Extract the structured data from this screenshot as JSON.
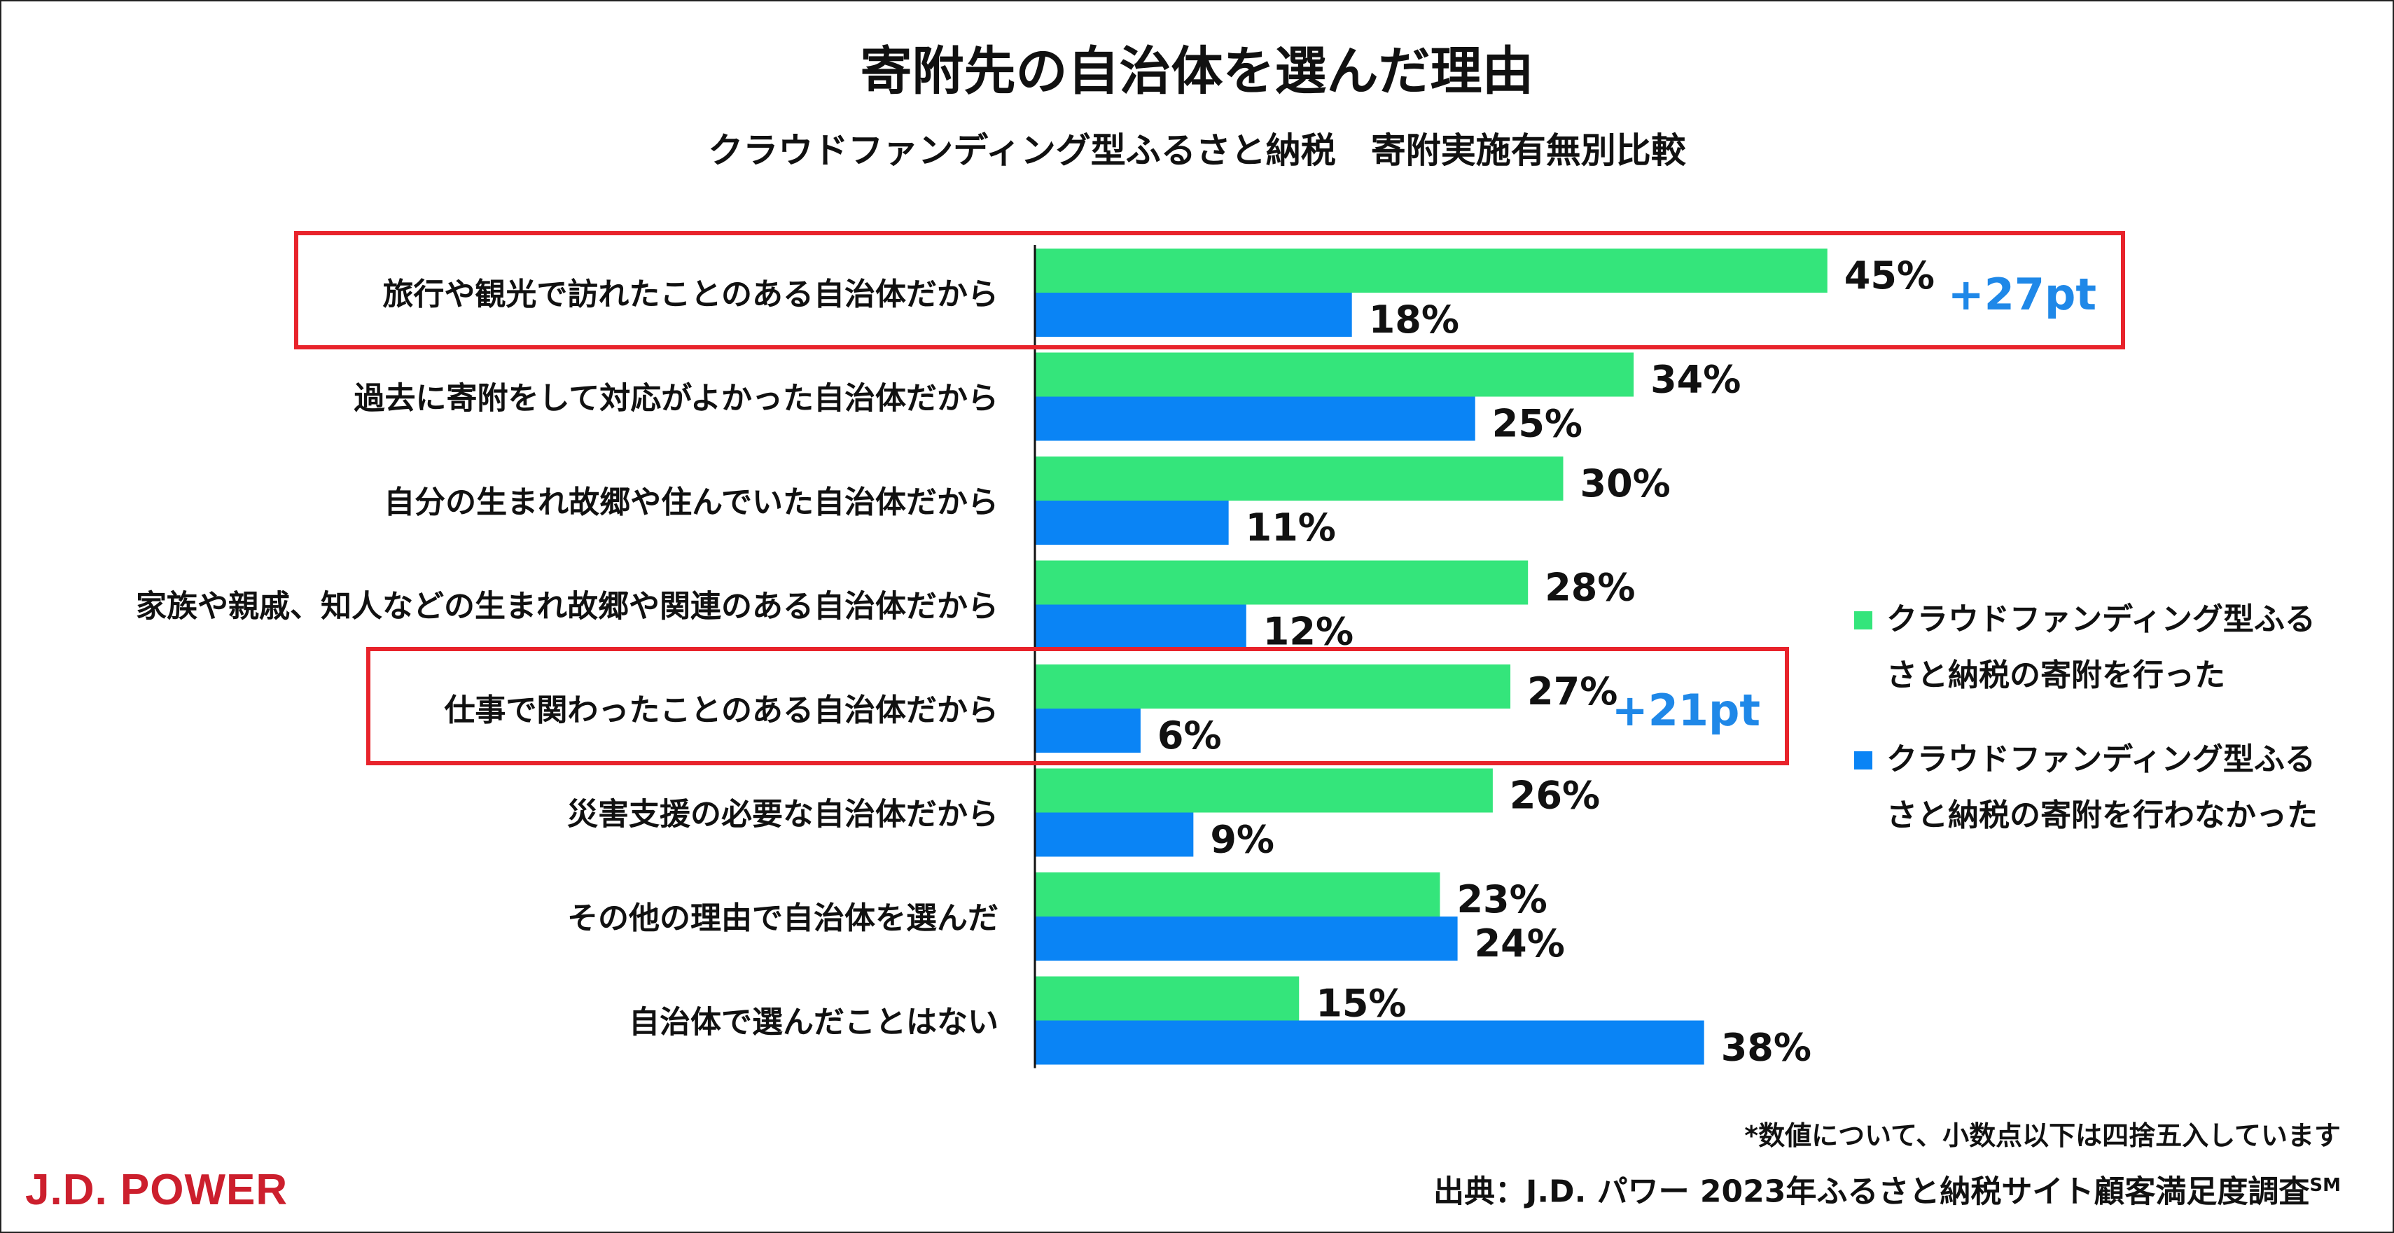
{
  "title": "寄附先の自治体を選んだ理由",
  "subtitle": "クラウドファンディング型ふるさと納税　寄附実施有無別比較",
  "chart_data": {
    "type": "bar",
    "orientation": "horizontal",
    "categories": [
      "旅行や観光で訪れたことのある自治体だから",
      "過去に寄附をして対応がよかった自治体だから",
      "自分の生まれ故郷や住んでいた自治体だから",
      "家族や親戚、知人などの生まれ故郷や関連のある自治体だから",
      "仕事で関わったことのある自治体だから",
      "災害支援の必要な自治体だから",
      "その他の理由で自治体を選んだ",
      "自治体で選んだことはない"
    ],
    "series": [
      {
        "name": "クラウドファンディング型ふるさと納税の寄附を行った",
        "color": "#34e57b",
        "values": [
          45,
          34,
          30,
          28,
          27,
          26,
          23,
          15
        ]
      },
      {
        "name": "クラウドファンディング型ふるさと納税の寄附を行わなかった",
        "color": "#0a84f5",
        "values": [
          18,
          25,
          11,
          12,
          6,
          9,
          24,
          38
        ]
      }
    ],
    "value_suffix": "%",
    "xlim": [
      0,
      50
    ],
    "grid": false,
    "legend_position": "right",
    "highlights": [
      {
        "category_index": 0,
        "label": "+27pt"
      },
      {
        "category_index": 4,
        "label": "+21pt"
      }
    ],
    "highlight_box_color": "#e8232b",
    "highlight_text_color": "#1f88e8"
  },
  "legend": [
    {
      "line1": "クラウドファンディング型ふる",
      "line2": "さと納税の寄附を行った",
      "color": "#34e57b"
    },
    {
      "line1": "クラウドファンディング型ふる",
      "line2": "さと納税の寄附を行わなかった",
      "color": "#0a84f5"
    }
  ],
  "footnote": "*数値について、小数点以下は四捨五入しています",
  "source": {
    "text": "出典：J.D. パワー 2023年ふるさと納税サイト顧客満足度調査",
    "mark": "SM"
  },
  "brand": {
    "logo_text": "J.D. POWER",
    "color": "#cc1f2d"
  }
}
